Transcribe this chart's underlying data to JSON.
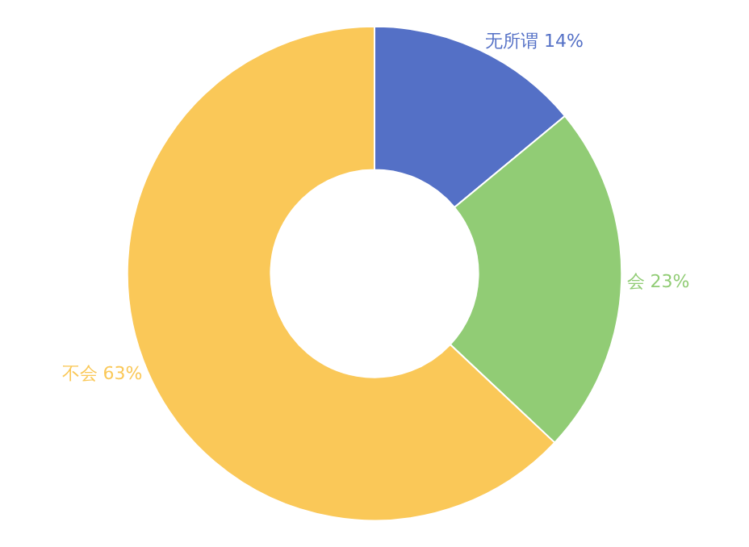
{
  "chart_data": {
    "type": "donut",
    "categories": [
      "无所谓",
      "会",
      "不会"
    ],
    "values": [
      14,
      23,
      63
    ],
    "value_labels": [
      "14%",
      "23%",
      "63%"
    ],
    "colors": [
      "#5470c6",
      "#91cc75",
      "#fac858"
    ],
    "legend": false
  }
}
